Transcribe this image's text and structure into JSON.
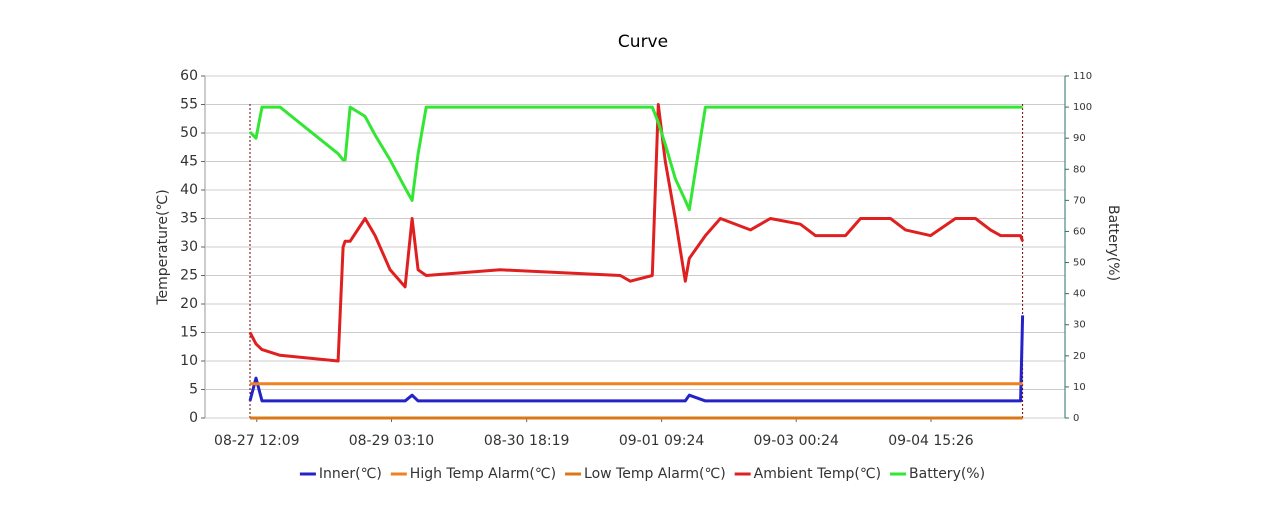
{
  "chart_data": {
    "type": "line",
    "title": "Curve",
    "y_label": "Temperature(℃)",
    "y2_label": "Battery(%)",
    "x": [
      "08-27 10:11",
      "08-27 11:56",
      "08-27 13:40",
      "08-27 18:53",
      "08-28 11:42",
      "08-28 13:09",
      "08-28 13:44",
      "08-28 15:11",
      "08-28 19:32",
      "08-28 22:26",
      "08-29 02:46",
      "08-29 07:07",
      "08-29 09:09",
      "08-29 10:53",
      "08-29 13:13",
      "08-30 10:40",
      "08-31 21:26",
      "09-01 00:20",
      "09-01 06:43",
      "09-01 08:27",
      "09-01 10:29",
      "09-01 13:23",
      "09-01 16:17",
      "09-01 17:26",
      "09-01 22:05",
      "09-02 02:26",
      "09-02 11:07",
      "09-02 16:55",
      "09-03 01:37",
      "09-03 05:58",
      "09-03 14:40",
      "09-03 19:01",
      "09-04 03:42",
      "09-04 08:03",
      "09-04 15:17",
      "09-04 22:32",
      "09-05 04:20",
      "09-05 08:41",
      "09-05 11:35",
      "09-05 17:23",
      "09-05 17:58"
    ],
    "xlim": [
      "08-26 21:09",
      "09-06 06:15"
    ],
    "xticks": [
      "08-27 12:09",
      "08-29 03:10",
      "08-30 18:19",
      "09-01 09:24",
      "09-03 00:24",
      "09-04 15:26"
    ],
    "ylim": [
      0,
      60
    ],
    "yticks": [
      0,
      5,
      10,
      15,
      20,
      25,
      30,
      35,
      40,
      45,
      50,
      55,
      60
    ],
    "y2lim": [
      0,
      110
    ],
    "y2ticks": [
      0,
      10,
      20,
      30,
      40,
      50,
      60,
      70,
      80,
      90,
      100,
      110
    ],
    "grid": true,
    "series": [
      {
        "name": "Inner(℃)",
        "color": "#2323c8",
        "values": [
          3,
          7,
          3,
          3,
          3,
          3,
          3,
          3,
          3,
          3,
          3,
          3,
          4,
          3,
          3,
          3,
          3,
          3,
          3,
          3,
          3,
          3,
          3,
          4,
          3,
          3,
          3,
          3,
          3,
          3,
          3,
          3,
          3,
          3,
          3,
          3,
          3,
          3,
          3,
          3,
          18
        ]
      },
      {
        "name": "High Temp Alarm(℃)",
        "color": "#f08020",
        "values": [
          6,
          6,
          6,
          6,
          6,
          6,
          6,
          6,
          6,
          6,
          6,
          6,
          6,
          6,
          6,
          6,
          6,
          6,
          6,
          6,
          6,
          6,
          6,
          6,
          6,
          6,
          6,
          6,
          6,
          6,
          6,
          6,
          6,
          6,
          6,
          6,
          6,
          6,
          6,
          6,
          6
        ]
      },
      {
        "name": "Low Temp Alarm(℃)",
        "color": "#d87818",
        "values": [
          0,
          0,
          0,
          0,
          0,
          0,
          0,
          0,
          0,
          0,
          0,
          0,
          0,
          0,
          0,
          0,
          0,
          0,
          0,
          0,
          0,
          0,
          0,
          0,
          0,
          0,
          0,
          0,
          0,
          0,
          0,
          0,
          0,
          0,
          0,
          0,
          0,
          0,
          0,
          0,
          0
        ]
      },
      {
        "name": "Ambient Temp(℃)",
        "color": "#e02020",
        "values": [
          15,
          13,
          12,
          11,
          10,
          30,
          31,
          31,
          35,
          32,
          26,
          23,
          35,
          26,
          25,
          26,
          25,
          24,
          25,
          55,
          45,
          35,
          24,
          28,
          32,
          35,
          33,
          35,
          34,
          32,
          32,
          35,
          35,
          33,
          32,
          35,
          35,
          33,
          32,
          32,
          31
        ]
      },
      {
        "name": "Battery(%)",
        "color": "#33e633",
        "axis": "y2",
        "values": [
          92,
          90,
          100,
          100,
          85,
          83,
          83,
          100,
          97,
          91,
          83,
          74,
          70,
          85,
          100,
          100,
          100,
          100,
          100,
          95,
          88,
          77,
          70,
          67,
          100,
          100,
          100,
          100,
          100,
          100,
          100,
          100,
          100,
          100,
          100,
          100,
          100,
          100,
          100,
          100,
          100
        ]
      }
    ]
  }
}
